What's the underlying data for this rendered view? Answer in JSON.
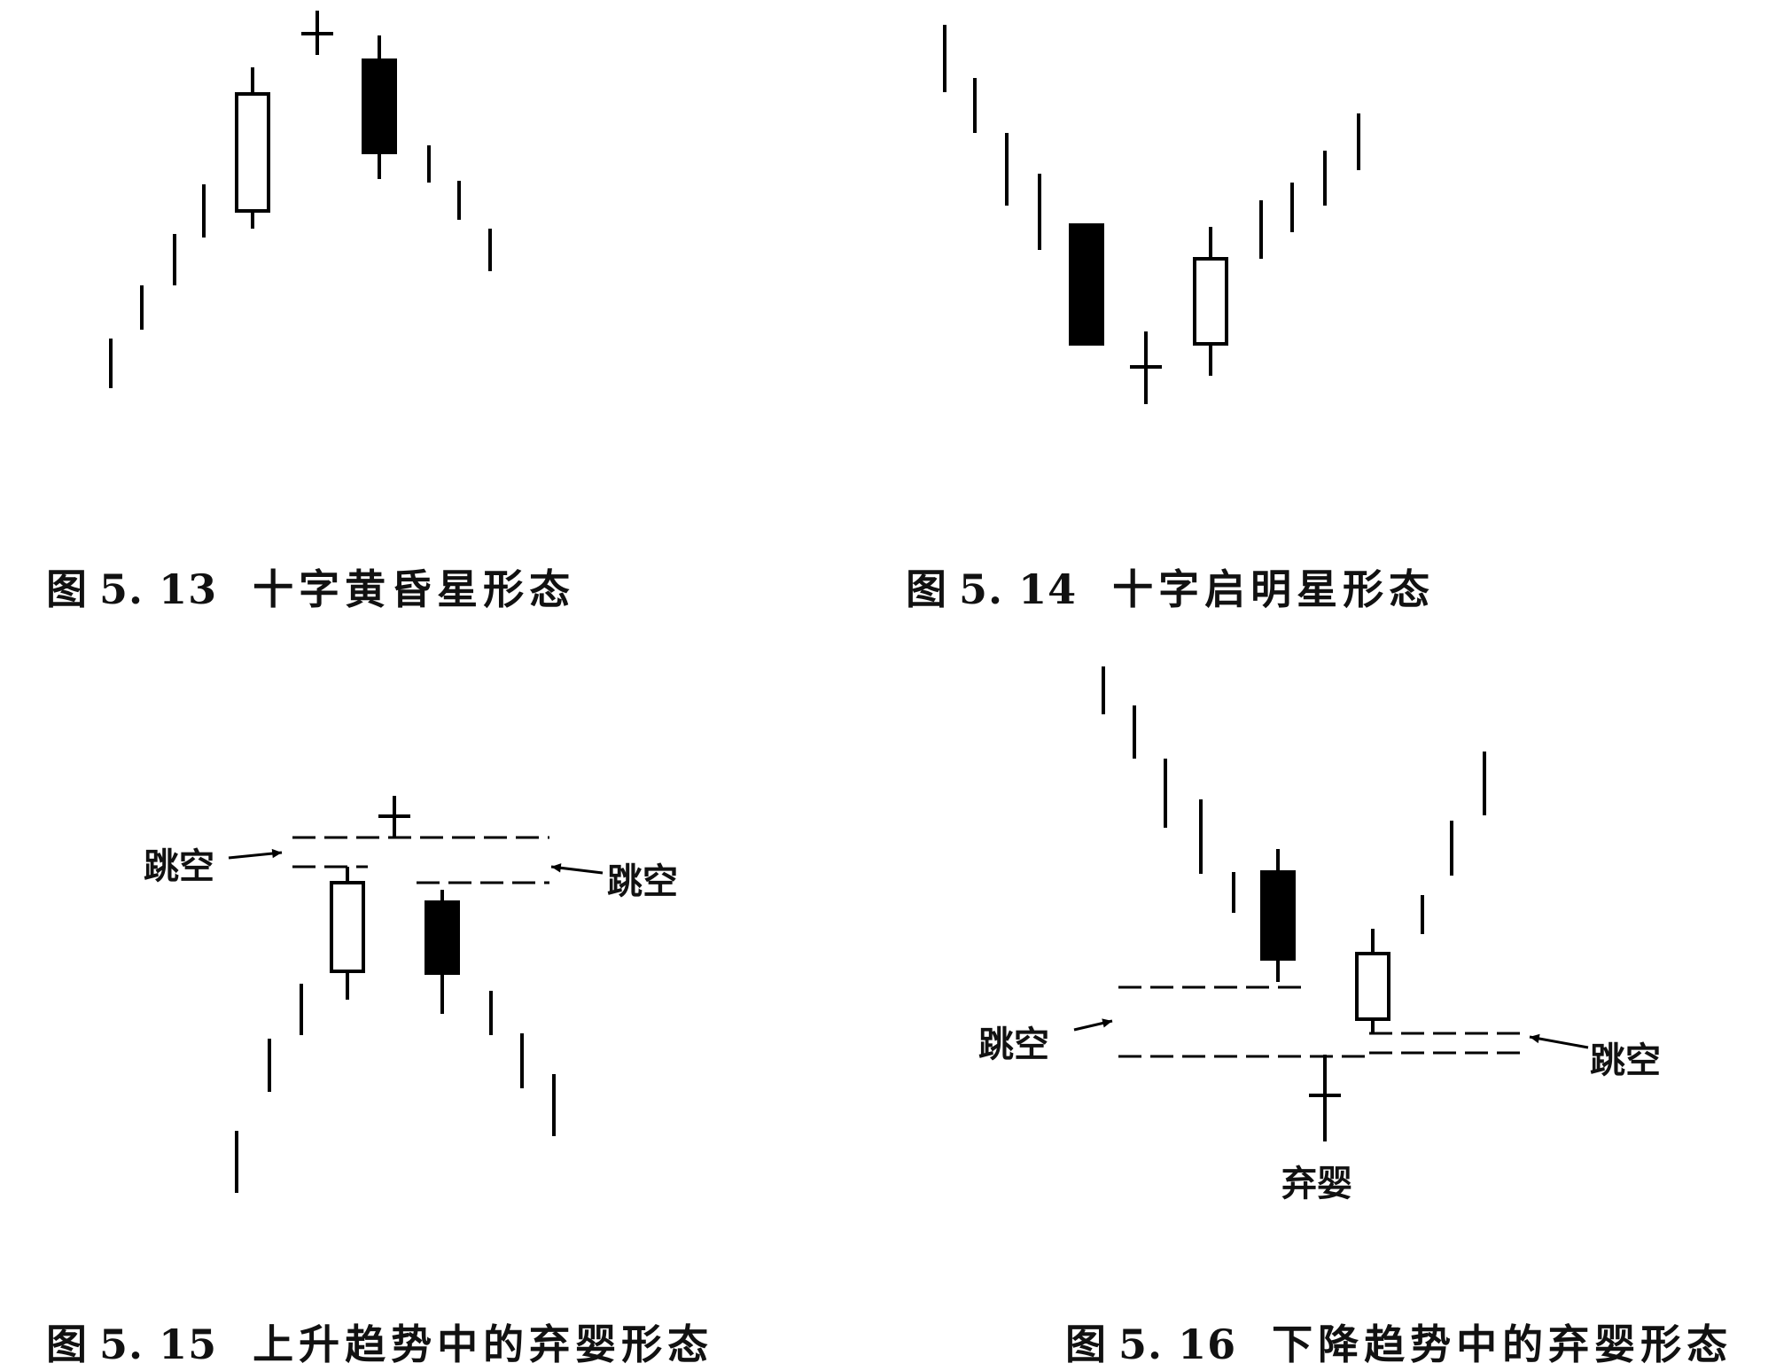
{
  "figures": [
    {
      "id": "5.13",
      "prefix": "图",
      "number": "5. 13",
      "title": "十字黄昏星形态"
    },
    {
      "id": "5.14",
      "prefix": "图",
      "number": "5. 14",
      "title": "十字启明星形态"
    },
    {
      "id": "5.15",
      "prefix": "图",
      "number": "5. 15",
      "title": "上升趋势中的弃婴形态"
    },
    {
      "id": "5.16",
      "prefix": "图",
      "number": "5. 16",
      "title": "下降趋势中的弃婴形态"
    }
  ],
  "annotations": {
    "gap_label": "跳空",
    "abandoned_baby_label": "弃婴"
  },
  "colors": {
    "ink": "#000000",
    "background": "#ffffff"
  }
}
